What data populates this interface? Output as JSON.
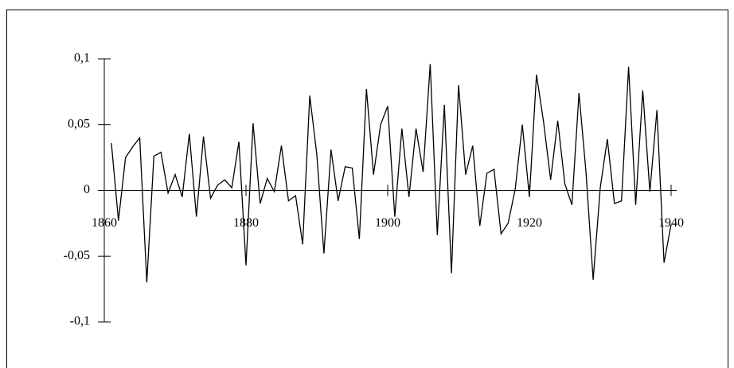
{
  "chart_data": {
    "type": "line",
    "x": [
      1861,
      1862,
      1863,
      1864,
      1865,
      1866,
      1867,
      1868,
      1869,
      1870,
      1871,
      1872,
      1873,
      1874,
      1875,
      1876,
      1877,
      1878,
      1879,
      1880,
      1881,
      1882,
      1883,
      1884,
      1885,
      1886,
      1887,
      1888,
      1889,
      1890,
      1891,
      1892,
      1893,
      1894,
      1895,
      1896,
      1897,
      1898,
      1899,
      1900,
      1901,
      1902,
      1903,
      1904,
      1905,
      1906,
      1907,
      1908,
      1909,
      1910,
      1911,
      1912,
      1913,
      1914,
      1915,
      1916,
      1917,
      1918,
      1919,
      1920,
      1921,
      1922,
      1923,
      1924,
      1925,
      1926,
      1927,
      1928,
      1929,
      1930,
      1931,
      1932,
      1933,
      1934,
      1935,
      1936,
      1937,
      1938,
      1939,
      1940
    ],
    "values": [
      0.036,
      -0.023,
      0.025,
      0.033,
      0.04,
      -0.07,
      0.026,
      0.029,
      -0.002,
      0.012,
      -0.005,
      0.043,
      -0.02,
      0.041,
      -0.006,
      0.004,
      0.008,
      0.002,
      0.037,
      -0.057,
      0.051,
      -0.01,
      0.009,
      -0.001,
      0.034,
      -0.008,
      -0.004,
      -0.041,
      0.072,
      0.027,
      -0.048,
      0.031,
      -0.008,
      0.018,
      0.017,
      -0.037,
      0.077,
      0.012,
      0.05,
      0.064,
      -0.02,
      0.047,
      -0.005,
      0.047,
      0.014,
      0.096,
      -0.034,
      0.065,
      -0.063,
      0.08,
      0.012,
      0.034,
      -0.027,
      0.013,
      0.016,
      -0.033,
      -0.025,
      0.001,
      0.05,
      -0.005,
      0.088,
      0.052,
      0.008,
      0.053,
      0.005,
      -0.011,
      0.074,
      0.013,
      -0.068,
      0.002,
      0.039,
      -0.01,
      -0.008,
      0.094,
      -0.011,
      0.076,
      -0.001,
      0.061,
      -0.055,
      -0.026
    ],
    "color": "#000000",
    "xlim": [
      1860,
      1940
    ],
    "xticks": [
      1860,
      1880,
      1900,
      1920,
      1940
    ],
    "ylim": [
      -0.1,
      0.1
    ],
    "yticks": [
      {
        "value": 0.1,
        "label": "0,1"
      },
      {
        "value": 0.05,
        "label": "0,05"
      },
      0,
      {
        "value": -0.05,
        "label": "-0,05"
      },
      {
        "value": -0.1,
        "label": "-0,1"
      }
    ]
  }
}
